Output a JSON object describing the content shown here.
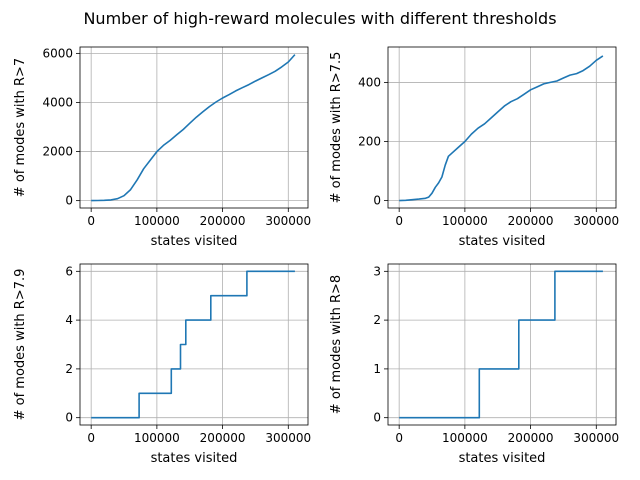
{
  "figure": {
    "suptitle": "Number of high-reward molecules with different thresholds",
    "line_color": "#1f77b4"
  },
  "chart_data": [
    {
      "type": "line",
      "xlabel": "states visited",
      "ylabel": "# of modes with R>7",
      "xlim": [
        -17000,
        330000
      ],
      "ylim": [
        -300,
        6260
      ],
      "xticks": [
        0,
        100000,
        200000,
        300000
      ],
      "yticks": [
        0,
        2000,
        4000,
        6000
      ],
      "grid": true,
      "step": false,
      "series": [
        {
          "x": [
            0,
            10000,
            20000,
            30000,
            40000,
            50000,
            60000,
            70000,
            80000,
            90000,
            100000,
            110000,
            120000,
            130000,
            140000,
            150000,
            160000,
            170000,
            180000,
            190000,
            200000,
            210000,
            220000,
            230000,
            240000,
            250000,
            260000,
            270000,
            280000,
            290000,
            300000,
            310000
          ],
          "y": [
            0,
            5,
            15,
            30,
            80,
            200,
            450,
            850,
            1300,
            1650,
            2000,
            2250,
            2450,
            2680,
            2900,
            3150,
            3400,
            3620,
            3830,
            4020,
            4180,
            4320,
            4470,
            4600,
            4730,
            4870,
            5000,
            5130,
            5270,
            5450,
            5650,
            5950
          ]
        }
      ]
    },
    {
      "type": "line",
      "xlabel": "states visited",
      "ylabel": "# of modes with R>7.5",
      "xlim": [
        -17000,
        330000
      ],
      "ylim": [
        -25,
        520
      ],
      "xticks": [
        0,
        100000,
        200000,
        300000
      ],
      "yticks": [
        0,
        200,
        400
      ],
      "grid": true,
      "step": false,
      "series": [
        {
          "x": [
            0,
            10000,
            20000,
            30000,
            40000,
            45000,
            50000,
            55000,
            60000,
            65000,
            70000,
            75000,
            80000,
            90000,
            100000,
            110000,
            120000,
            130000,
            140000,
            150000,
            160000,
            170000,
            180000,
            190000,
            200000,
            210000,
            220000,
            230000,
            240000,
            250000,
            260000,
            270000,
            280000,
            290000,
            300000,
            310000
          ],
          "y": [
            0,
            1,
            3,
            5,
            8,
            12,
            25,
            45,
            60,
            80,
            120,
            150,
            160,
            180,
            200,
            225,
            245,
            260,
            280,
            300,
            320,
            335,
            345,
            360,
            375,
            385,
            395,
            400,
            405,
            415,
            425,
            430,
            440,
            455,
            475,
            490
          ]
        }
      ]
    },
    {
      "type": "line",
      "xlabel": "states visited",
      "ylabel": "# of modes with R>7.9",
      "xlim": [
        -17000,
        330000
      ],
      "ylim": [
        -0.3,
        6.3
      ],
      "xticks": [
        0,
        100000,
        200000,
        300000
      ],
      "yticks": [
        0,
        2,
        4,
        6
      ],
      "grid": true,
      "step": true,
      "series": [
        {
          "x": [
            0,
            73000,
            73000,
            122000,
            122000,
            136000,
            136000,
            144000,
            144000,
            182000,
            182000,
            237000,
            237000,
            310000
          ],
          "y": [
            0,
            0,
            1,
            1,
            2,
            2,
            3,
            3,
            4,
            4,
            5,
            5,
            6,
            6
          ]
        }
      ]
    },
    {
      "type": "line",
      "xlabel": "states visited",
      "ylabel": "# of modes with R>8",
      "xlim": [
        -17000,
        330000
      ],
      "ylim": [
        -0.15,
        3.15
      ],
      "xticks": [
        0,
        100000,
        200000,
        300000
      ],
      "yticks": [
        0,
        1,
        2,
        3
      ],
      "grid": true,
      "step": true,
      "series": [
        {
          "x": [
            0,
            122000,
            122000,
            182000,
            182000,
            237000,
            237000,
            310000
          ],
          "y": [
            0,
            0,
            1,
            1,
            2,
            2,
            3,
            3
          ]
        }
      ]
    }
  ]
}
